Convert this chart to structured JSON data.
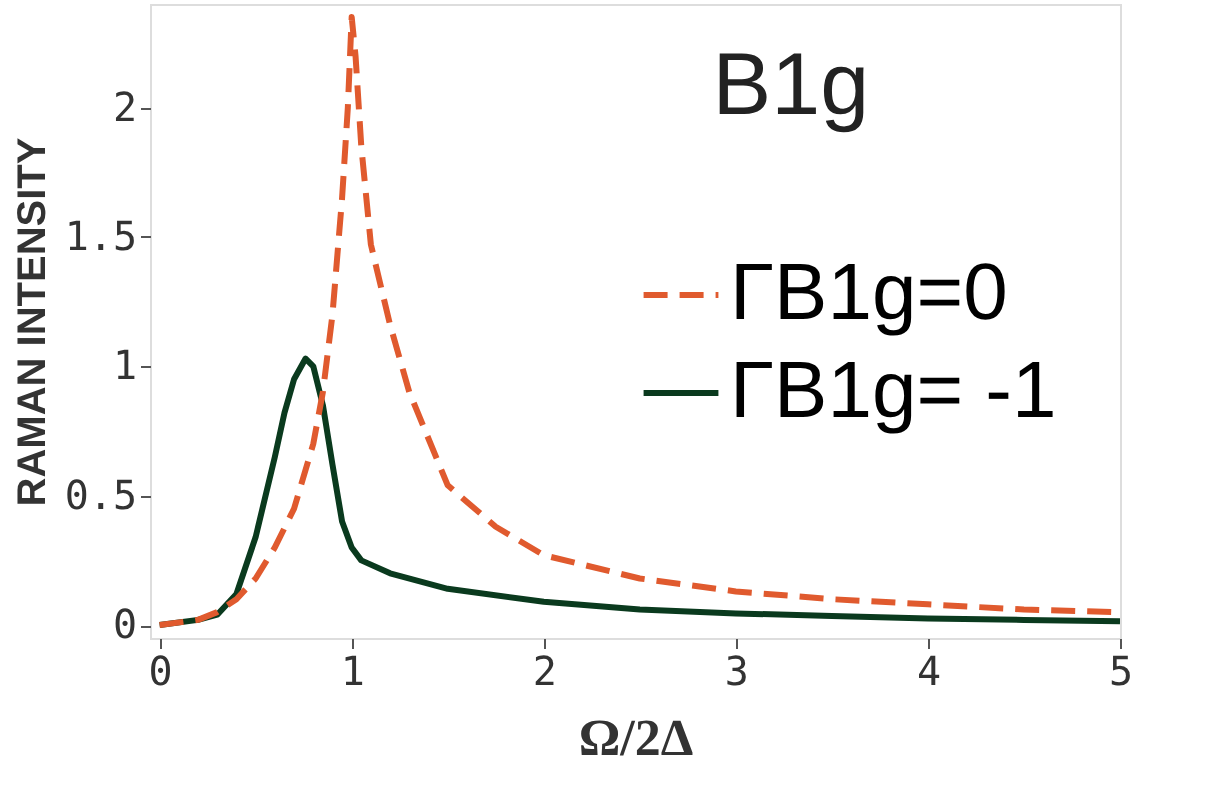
{
  "chart_data": {
    "type": "line",
    "xlabel": "Ω/2Δ",
    "ylabel": "RAMAN   INTENSITY",
    "annotations": [
      "B1g"
    ],
    "xlim": [
      -0.05,
      5
    ],
    "ylim": [
      -0.05,
      2.4
    ],
    "xticks": [
      0,
      1,
      2,
      3,
      4,
      5
    ],
    "yticks": [
      0,
      0.5,
      1,
      1.5,
      2
    ],
    "grid": false,
    "legend": "right",
    "marker": "none",
    "series": [
      {
        "name": "ΓB1g=0",
        "color": "#e05a2e",
        "line_style": "dashed",
        "x": [
          0,
          0.2,
          0.3,
          0.4,
          0.5,
          0.6,
          0.7,
          0.8,
          0.85,
          0.9,
          0.95,
          0.98,
          1.0,
          1.02,
          1.05,
          1.1,
          1.2,
          1.3,
          1.5,
          1.75,
          2,
          2.5,
          3,
          3.5,
          4,
          4.5,
          5
        ],
        "values": [
          0,
          0.02,
          0.05,
          0.1,
          0.18,
          0.3,
          0.45,
          0.7,
          0.9,
          1.2,
          1.65,
          2.0,
          2.35,
          2.2,
          1.85,
          1.47,
          1.16,
          0.9,
          0.54,
          0.38,
          0.27,
          0.18,
          0.13,
          0.1,
          0.08,
          0.06,
          0.05
        ]
      },
      {
        "name": "ΓB1g= -1",
        "color": "#0a3a1e",
        "line_style": "solid",
        "x": [
          0,
          0.2,
          0.3,
          0.4,
          0.5,
          0.6,
          0.65,
          0.7,
          0.76,
          0.8,
          0.85,
          0.9,
          0.95,
          1.0,
          1.05,
          1.2,
          1.5,
          2,
          2.5,
          3,
          3.5,
          4,
          4.5,
          5
        ],
        "values": [
          0,
          0.02,
          0.04,
          0.12,
          0.34,
          0.65,
          0.82,
          0.95,
          1.03,
          1.0,
          0.85,
          0.62,
          0.4,
          0.3,
          0.25,
          0.2,
          0.14,
          0.09,
          0.06,
          0.045,
          0.035,
          0.025,
          0.02,
          0.015
        ]
      }
    ]
  }
}
